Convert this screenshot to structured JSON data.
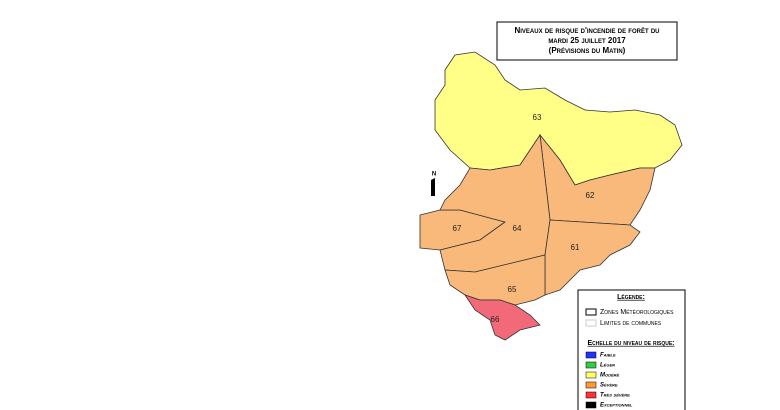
{
  "title": {
    "lines": [
      "Niveaux de risque d'incendie de forêt du",
      "mardi 25 juillet 2017",
      "(Prévisions du Matin)"
    ]
  },
  "north": "N",
  "zones": [
    {
      "label": "63",
      "color": "#ffff88"
    },
    {
      "label": "62",
      "color": "#f9b97a"
    },
    {
      "label": "67",
      "color": "#f9b97a"
    },
    {
      "label": "64",
      "color": "#f9b97a"
    },
    {
      "label": "61",
      "color": "#f9b97a"
    },
    {
      "label": "65",
      "color": "#f9b97a"
    },
    {
      "label": "66",
      "color": "#f26a7a"
    }
  ],
  "legend": {
    "title": "Légende:",
    "items": [
      "Zones Météorologiques",
      "Limites de communes"
    ],
    "scale_title": "Echelle du niveau de risque:",
    "levels": [
      {
        "label": "Faible",
        "color": "#1f33ff"
      },
      {
        "label": "Léger",
        "color": "#33cc44"
      },
      {
        "label": "Modéré",
        "color": "#ffff66"
      },
      {
        "label": "Sévère",
        "color": "#ff9933"
      },
      {
        "label": "Très sévère",
        "color": "#ff3333"
      },
      {
        "label": "Exceptionnel",
        "color": "#000000"
      }
    ]
  }
}
